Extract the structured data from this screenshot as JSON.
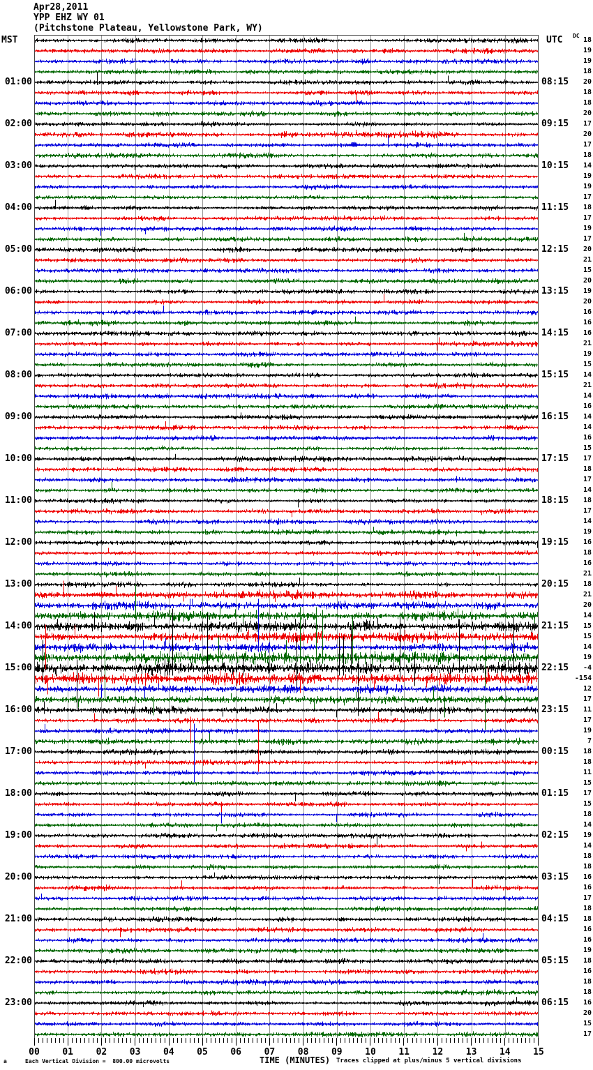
{
  "header": {
    "date": "Apr28,2011",
    "station": "YPP EHZ WY 01",
    "location": "(Pitchstone Plateau, Yellowstone Park, WY)"
  },
  "axes": {
    "left_label": "MST",
    "right_label": "UTC",
    "dc_label": "DC",
    "x_title": "TIME (MINUTES)",
    "x_ticks": [
      "00",
      "01",
      "02",
      "03",
      "04",
      "05",
      "06",
      "07",
      "08",
      "09",
      "10",
      "11",
      "12",
      "13",
      "14",
      "15"
    ]
  },
  "footer": {
    "left": "Each Vertical Division =  800.00 microvolts",
    "right": "Traces clipped at plus/minus 5 vertical divisions",
    "corner": "a"
  },
  "chart_data": {
    "type": "line",
    "subtype": "helicorder",
    "rows": 96,
    "minutes_per_row": 15,
    "x_range_minutes": [
      0,
      15
    ],
    "grid": true,
    "row_colors": [
      "#000000",
      "#ee0000",
      "#0000dd",
      "#006600"
    ],
    "mst_labels": [
      "01:00",
      "02:00",
      "03:00",
      "04:00",
      "05:00",
      "06:00",
      "07:00",
      "08:00",
      "09:00",
      "10:00",
      "11:00",
      "12:00",
      "13:00",
      "14:00",
      "15:00",
      "16:00",
      "17:00",
      "18:00",
      "19:00",
      "20:00",
      "21:00",
      "22:00",
      "23:00"
    ],
    "utc_labels": [
      "08:15",
      "09:15",
      "10:15",
      "11:15",
      "12:15",
      "13:15",
      "14:15",
      "15:15",
      "16:15",
      "17:15",
      "18:15",
      "19:15",
      "20:15",
      "21:15",
      "22:15",
      "23:15",
      "00:15",
      "01:15",
      "02:15",
      "03:15",
      "04:15",
      "05:15",
      "06:15"
    ],
    "hour_label_first_row": 4,
    "hour_label_step": 4,
    "dc_offsets": [
      18,
      19,
      19,
      18,
      20,
      18,
      18,
      20,
      17,
      20,
      17,
      18,
      14,
      19,
      19,
      17,
      18,
      17,
      19,
      17,
      20,
      21,
      15,
      20,
      19,
      20,
      16,
      16,
      16,
      21,
      19,
      15,
      14,
      21,
      14,
      16,
      14,
      14,
      16,
      15,
      17,
      18,
      17,
      14,
      18,
      17,
      14,
      19,
      16,
      18,
      16,
      21,
      18,
      21,
      20,
      14,
      15,
      15,
      14,
      19,
      -4,
      -154,
      12,
      17,
      11,
      17,
      19,
      7,
      18,
      18,
      11,
      15,
      17,
      15,
      18,
      14,
      19,
      14,
      18,
      18,
      16,
      16,
      17,
      18,
      18,
      16,
      16,
      19,
      18,
      16,
      18,
      18,
      16,
      20,
      15,
      17
    ],
    "noise_boost": {
      "9": 1.2,
      "53": 1.8,
      "54": 1.6,
      "55": 2.0,
      "56": 2.4,
      "57": 2.2,
      "58": 2.0,
      "59": 2.6,
      "60": 3.0,
      "61": 2.6,
      "62": 1.8,
      "63": 1.6,
      "64": 1.5,
      "67": 1.4
    },
    "events": [
      {
        "r": 10,
        "m": 9.5,
        "u": 5,
        "d": 3,
        "b": 0.5
      },
      {
        "r": 42,
        "m": 12.55,
        "u": 5,
        "d": 3
      },
      {
        "r": 51,
        "m": 13.1,
        "u": 5,
        "d": 2
      },
      {
        "r": 53,
        "m": 0.87,
        "u": 20,
        "d": 3
      },
      {
        "r": 53,
        "m": 2.0,
        "u": 5,
        "d": 2,
        "b": 0.8
      },
      {
        "r": 54,
        "m": 4.63,
        "u": 9,
        "d": 5
      },
      {
        "r": 55,
        "m": 3.0,
        "u": 45,
        "d": 4
      },
      {
        "r": 55,
        "m": 5.52,
        "u": 12,
        "d": 3
      },
      {
        "r": 55,
        "m": 5.98,
        "u": 9,
        "d": 3
      },
      {
        "r": 55,
        "m": 6.6,
        "u": 8,
        "d": 3
      },
      {
        "r": 55,
        "m": 12.6,
        "u": 10,
        "d": 3
      },
      {
        "r": 56,
        "m": 1.78,
        "u": 20,
        "d": 4
      },
      {
        "r": 56,
        "m": 4.1,
        "u": 25,
        "d": 4
      },
      {
        "r": 56,
        "m": 5.15,
        "u": 18,
        "d": 4
      },
      {
        "r": 56,
        "m": 8.05,
        "u": 10,
        "d": 3
      },
      {
        "r": 56,
        "m": 10.2,
        "u": 12,
        "d": 3
      },
      {
        "r": 57,
        "m": 0.33,
        "u": 17,
        "d": 46
      },
      {
        "r": 57,
        "m": 7.9,
        "u": 10,
        "d": 4
      },
      {
        "r": 58,
        "m": 3.24,
        "u": 10,
        "d": 4
      },
      {
        "r": 58,
        "m": 3.86,
        "u": 8,
        "d": 4
      },
      {
        "r": 58,
        "m": 6.66,
        "u": 69,
        "d": 6
      },
      {
        "r": 58,
        "m": 9.46,
        "u": 20,
        "d": 4
      },
      {
        "r": 59,
        "m": 2.1,
        "u": 20,
        "d": 60
      },
      {
        "r": 59,
        "m": 5.48,
        "u": 30,
        "d": 6
      },
      {
        "r": 59,
        "m": 7.49,
        "u": 25,
        "d": 5
      },
      {
        "r": 59,
        "m": 7.9,
        "u": 72,
        "d": 8
      },
      {
        "r": 59,
        "m": 8.38,
        "u": 72,
        "d": 8
      },
      {
        "r": 59,
        "m": 8.57,
        "u": 68,
        "d": 8
      },
      {
        "r": 59,
        "m": 9.46,
        "u": 60,
        "d": 8
      },
      {
        "r": 59,
        "m": 12.63,
        "u": 40,
        "d": 10
      },
      {
        "r": 59,
        "m": 13.4,
        "u": 28,
        "d": 42
      },
      {
        "r": 60,
        "m": 0.25,
        "u": 40,
        "d": 20
      },
      {
        "r": 60,
        "m": 1.27,
        "u": 12,
        "d": 58
      },
      {
        "r": 60,
        "m": 4.1,
        "u": 73,
        "d": 10
      },
      {
        "r": 60,
        "m": 5.15,
        "u": 58,
        "d": 8
      },
      {
        "r": 60,
        "m": 6.2,
        "u": 18,
        "d": 10
      },
      {
        "r": 60,
        "m": 7.8,
        "u": 45,
        "d": 25
      },
      {
        "r": 60,
        "m": 9.07,
        "u": 45,
        "d": 10
      },
      {
        "r": 60,
        "m": 9.2,
        "u": 45,
        "d": 10
      },
      {
        "r": 60,
        "m": 9.42,
        "u": 58,
        "d": 8
      },
      {
        "r": 60,
        "m": 9.63,
        "u": 10,
        "d": 25
      },
      {
        "r": 60,
        "m": 10.87,
        "u": 73,
        "d": 15
      },
      {
        "r": 60,
        "m": 11.3,
        "u": 18,
        "d": 25
      },
      {
        "r": 60,
        "m": 12.63,
        "u": 70,
        "d": 6
      },
      {
        "r": 60,
        "m": 14.25,
        "u": 73,
        "d": 6
      },
      {
        "r": 61,
        "m": 0.4,
        "u": 4,
        "d": 22
      },
      {
        "r": 61,
        "m": 1.9,
        "u": 4,
        "d": 25
      },
      {
        "r": 61,
        "m": 3.3,
        "u": 3,
        "d": 10
      },
      {
        "r": 61,
        "m": 7.9,
        "u": 4,
        "d": 20
      },
      {
        "r": 61,
        "m": 10.1,
        "u": 3,
        "d": 15
      },
      {
        "r": 61,
        "m": 11.65,
        "u": 3,
        "d": 12
      },
      {
        "r": 62,
        "m": 2.0,
        "u": 6,
        "d": 12
      },
      {
        "r": 62,
        "m": 3.28,
        "u": 4,
        "d": 13
      },
      {
        "r": 63,
        "m": 3.55,
        "u": 4,
        "d": 22
      },
      {
        "r": 63,
        "m": 12.2,
        "u": 4,
        "d": 25
      },
      {
        "r": 63,
        "m": 13.4,
        "u": 4,
        "d": 43
      },
      {
        "r": 64,
        "m": 0.3,
        "u": 12,
        "d": 5
      },
      {
        "r": 64,
        "m": 9.63,
        "u": 30,
        "d": 8
      },
      {
        "r": 65,
        "m": 4.65,
        "u": 5,
        "d": 32
      },
      {
        "r": 66,
        "m": 4.75,
        "u": 10,
        "d": 73
      },
      {
        "r": 69,
        "m": 6.66,
        "u": 59,
        "d": 13
      },
      {
        "r": 73,
        "m": 5.56,
        "u": 3,
        "d": 22
      },
      {
        "r": 74,
        "m": 5.56,
        "u": 3,
        "d": 12
      },
      {
        "r": 77,
        "m": 13.3,
        "u": 6,
        "d": 3
      }
    ]
  }
}
